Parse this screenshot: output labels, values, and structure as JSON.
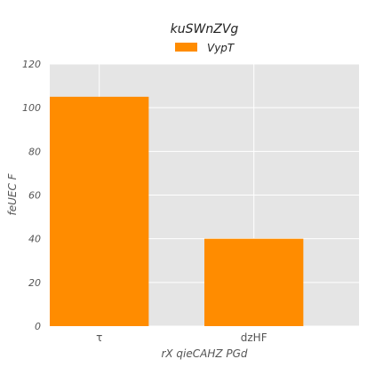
{
  "chart_data": {
    "type": "bar",
    "title": "kuSWnZVg",
    "xlabel": "rX qieCAHZ PGd",
    "ylabel": "feUEC F",
    "categories": [
      "τ",
      "dzHF"
    ],
    "series": [
      {
        "name": "VypT",
        "values": [
          105,
          40
        ],
        "color": "#ff8c00"
      }
    ],
    "ylim": [
      0,
      120
    ],
    "yticks": [
      0,
      20,
      40,
      60,
      80,
      100,
      120
    ],
    "grid": true,
    "legend_position": "top-center",
    "plot_background": "#e5e5e5",
    "grid_color": "#ffffff"
  }
}
